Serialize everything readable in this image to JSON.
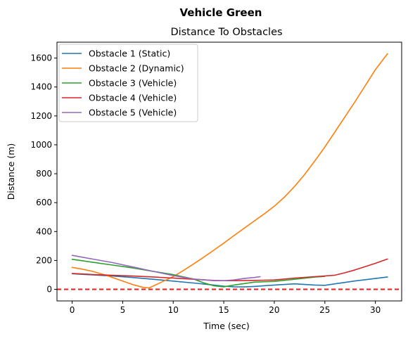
{
  "figure": {
    "suptitle": "Vehicle Green"
  },
  "chart_data": {
    "type": "line",
    "title": "Distance To Obstacles",
    "xlabel": "Time (sec)",
    "ylabel": "Distance (m)",
    "xlim": [
      -1.5,
      32.6
    ],
    "ylim": [
      -80,
      1710
    ],
    "xticks": [
      0,
      5,
      10,
      15,
      20,
      25,
      30
    ],
    "yticks": [
      0,
      200,
      400,
      600,
      800,
      1000,
      1200,
      1400,
      1600
    ],
    "grid": false,
    "legend_position": "top-left",
    "reference_line": {
      "y": 0,
      "color": "#e41a1c",
      "style": "dashed"
    },
    "series": [
      {
        "name": "Obstacle 1 (Static)",
        "color": "#1f77b4",
        "x": [
          0,
          2,
          4,
          6,
          8,
          10,
          12,
          14,
          15,
          16,
          17,
          18,
          20,
          22,
          24,
          25,
          26,
          28,
          30,
          31.2
        ],
        "y": [
          108,
          100,
          92,
          82,
          70,
          57,
          44,
          30,
          22,
          18,
          17,
          20,
          30,
          38,
          30,
          28,
          38,
          58,
          75,
          86
        ]
      },
      {
        "name": "Obstacle 2 (Dynamic)",
        "color": "#ff7f0e",
        "x": [
          0,
          1,
          2,
          3,
          4,
          5,
          6,
          7,
          7.6,
          8,
          9,
          10,
          11,
          12,
          13,
          14,
          15,
          16,
          17,
          18,
          19,
          20,
          21,
          22,
          23,
          24,
          25,
          26,
          27,
          28,
          29,
          30,
          31.2
        ],
        "y": [
          152,
          140,
          125,
          105,
          82,
          57,
          33,
          14,
          10,
          22,
          55,
          88,
          130,
          175,
          222,
          270,
          320,
          372,
          422,
          472,
          522,
          575,
          638,
          712,
          795,
          888,
          985,
          1090,
          1195,
          1300,
          1410,
          1520,
          1630
        ]
      },
      {
        "name": "Obstacle 3 (Vehicle)",
        "color": "#2ca02c",
        "x": [
          0,
          2,
          4,
          6,
          8,
          10,
          12,
          13,
          14,
          15,
          16,
          18,
          20,
          22,
          24,
          25
        ],
        "y": [
          208,
          188,
          168,
          148,
          125,
          102,
          72,
          45,
          25,
          18,
          30,
          50,
          55,
          70,
          85,
          90
        ]
      },
      {
        "name": "Obstacle 4 (Vehicle)",
        "color": "#d62728",
        "x": [
          0,
          2,
          4,
          6,
          8,
          10,
          12,
          14,
          15,
          16,
          18,
          20,
          22,
          24,
          26,
          27,
          28,
          30,
          31.2
        ],
        "y": [
          110,
          103,
          97,
          92,
          86,
          78,
          70,
          62,
          60,
          60,
          62,
          65,
          78,
          88,
          98,
          115,
          135,
          180,
          210
        ]
      },
      {
        "name": "Obstacle 5 (Vehicle)",
        "color": "#9467bd",
        "x": [
          0,
          2,
          4,
          6,
          8,
          10,
          12,
          14,
          15,
          16,
          17,
          18,
          18.6
        ],
        "y": [
          235,
          210,
          185,
          155,
          125,
          95,
          72,
          60,
          60,
          65,
          75,
          82,
          88
        ]
      }
    ]
  }
}
